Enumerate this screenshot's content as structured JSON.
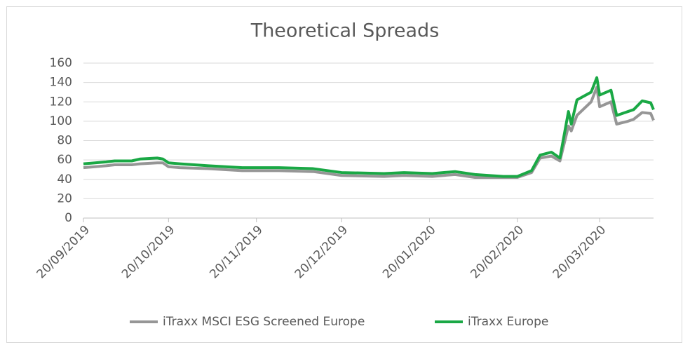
{
  "chart_data": {
    "type": "line",
    "title": "Theoretical Spreads",
    "x": [
      "2019-09-20",
      "2019-09-28",
      "2019-10-01",
      "2019-10-07",
      "2019-10-10",
      "2019-10-16",
      "2019-10-18",
      "2019-10-20",
      "2019-10-24",
      "2019-11-03",
      "2019-11-15",
      "2019-11-28",
      "2019-12-10",
      "2019-12-20",
      "2020-01-04",
      "2020-01-11",
      "2020-01-21",
      "2020-01-29",
      "2020-02-05",
      "2020-02-15",
      "2020-02-20",
      "2020-02-25",
      "2020-02-28",
      "2020-03-03",
      "2020-03-06",
      "2020-03-09",
      "2020-03-10",
      "2020-03-12",
      "2020-03-17",
      "2020-03-19",
      "2020-03-20",
      "2020-03-24",
      "2020-03-26",
      "2020-03-30",
      "2020-04-01",
      "2020-04-04",
      "2020-04-07",
      "2020-04-08"
    ],
    "series": [
      {
        "name": "iTraxx MSCI ESG Screened Europe",
        "color": "#969696",
        "values": [
          52,
          54,
          55,
          55,
          56,
          57,
          57,
          53,
          52,
          51,
          49,
          49,
          48,
          44,
          43,
          44,
          43,
          45,
          42,
          42,
          42,
          47,
          62,
          64,
          59,
          95,
          90,
          106,
          120,
          135,
          115,
          120,
          97,
          100,
          102,
          109,
          108,
          101
        ]
      },
      {
        "name": "iTraxx Europe",
        "color": "#1aa845",
        "values": [
          56,
          58,
          59,
          59,
          61,
          62,
          61,
          57,
          56,
          54,
          52,
          52,
          51,
          47,
          46,
          47,
          46,
          48,
          45,
          43,
          43,
          49,
          65,
          68,
          62,
          110,
          97,
          122,
          130,
          145,
          127,
          132,
          106,
          110,
          112,
          121,
          119,
          112
        ]
      }
    ],
    "xlim": [
      "2019-09-20",
      "2020-04-08"
    ],
    "xticks": [
      {
        "value": "2019-09-20",
        "label": "20/09/2019"
      },
      {
        "value": "2019-10-20",
        "label": "20/10/2019"
      },
      {
        "value": "2019-11-20",
        "label": "20/11/2019"
      },
      {
        "value": "2019-12-20",
        "label": "20/12/2019"
      },
      {
        "value": "2020-01-20",
        "label": "20/01/2020"
      },
      {
        "value": "2020-02-20",
        "label": "20/02/2020"
      },
      {
        "value": "2020-03-20",
        "label": "20/03/2020"
      }
    ],
    "ylim": [
      0,
      160
    ],
    "yticks": [
      0,
      20,
      40,
      60,
      80,
      100,
      120,
      140,
      160
    ],
    "grid": true,
    "legend": "bottom"
  }
}
